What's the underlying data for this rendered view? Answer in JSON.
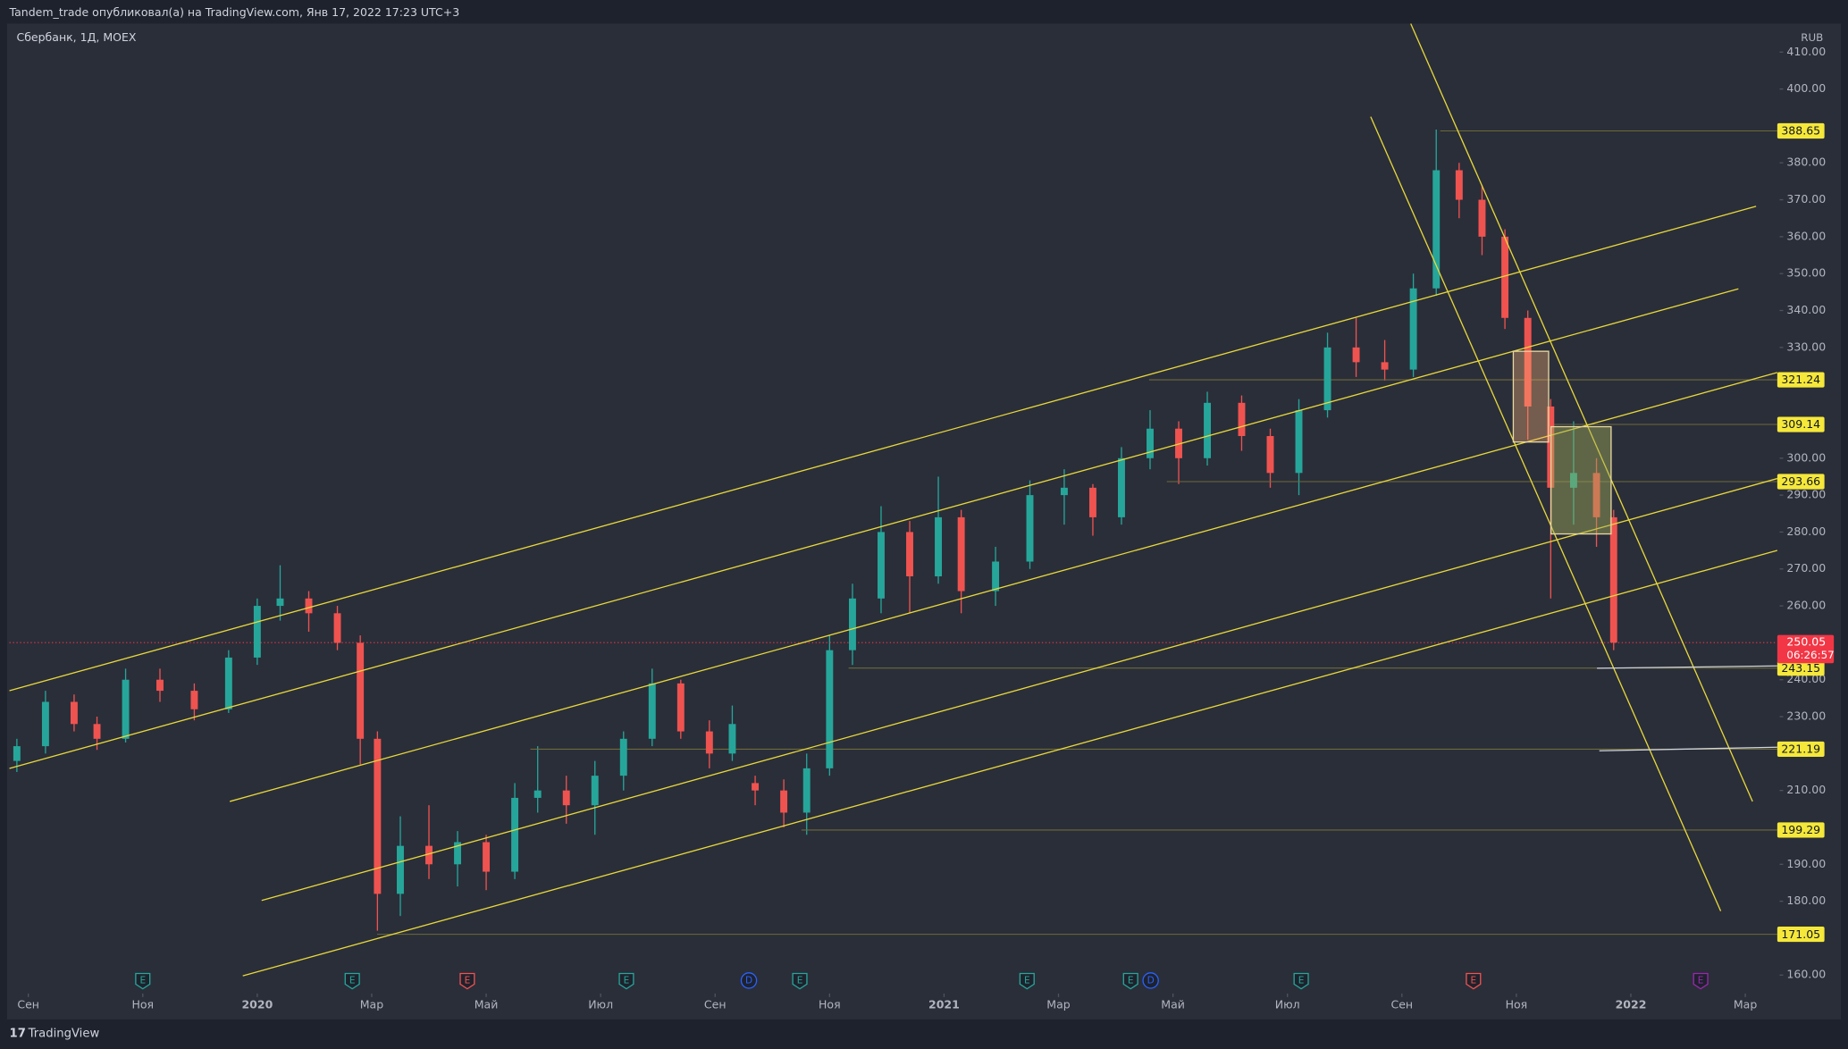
{
  "header": {
    "publisher": "Tandem_trade опубликовал(а) на TradingView.com, Янв 17, 2022 17:23 UTC+3"
  },
  "chart_data": {
    "type": "candlestick",
    "title": "Сбербанк, 1Д, MOEX",
    "currency": "RUB",
    "x": [
      -0.2,
      0.3,
      0.8,
      1.2,
      1.7,
      2.3,
      2.9,
      3.5,
      4.0,
      4.4,
      4.9,
      5.4,
      5.8,
      6.1,
      6.5,
      7.0,
      7.5,
      8.0,
      8.5,
      8.9,
      9.4,
      9.9,
      10.4,
      10.9,
      11.4,
      11.9,
      12.3,
      12.7,
      13.2,
      13.6,
      14.0,
      14.4,
      14.9,
      15.4,
      15.9,
      16.3,
      16.9,
      17.5,
      18.1,
      18.6,
      19.1,
      19.6,
      20.1,
      20.6,
      21.2,
      21.7,
      22.2,
      22.7,
      23.2,
      23.7,
      24.2,
      24.6,
      25.0,
      25.4,
      25.8,
      26.2,
      26.6,
      27.0,
      27.4,
      27.7
    ],
    "open": [
      218,
      222,
      234,
      228,
      224,
      240,
      237,
      232,
      246,
      260,
      262,
      258,
      250,
      224,
      182,
      195,
      190,
      196,
      188,
      208,
      210,
      206,
      214,
      224,
      239,
      226,
      220,
      212,
      210,
      204,
      216,
      248,
      262,
      280,
      268,
      284,
      264,
      272,
      290,
      292,
      284,
      300,
      308,
      300,
      315,
      306,
      296,
      313,
      330,
      326,
      324,
      346,
      378,
      370,
      360,
      338,
      314,
      292,
      296,
      284
    ],
    "high": [
      224,
      237,
      236,
      230,
      243,
      243,
      239,
      248,
      262,
      271,
      264,
      260,
      252,
      226,
      203,
      206,
      199,
      198,
      212,
      222,
      214,
      218,
      226,
      243,
      240,
      229,
      233,
      214,
      213,
      220,
      252,
      266,
      287,
      283,
      295,
      286,
      276,
      294,
      297,
      293,
      303,
      313,
      310,
      318,
      317,
      308,
      316,
      334,
      338,
      332,
      350,
      389,
      380,
      374,
      362,
      340,
      316,
      310,
      300,
      286
    ],
    "low": [
      215,
      220,
      226,
      221,
      223,
      234,
      229,
      231,
      244,
      256,
      253,
      248,
      217,
      172,
      176,
      186,
      184,
      183,
      186,
      204,
      201,
      198,
      210,
      222,
      224,
      216,
      218,
      206,
      200,
      198,
      214,
      244,
      258,
      258,
      266,
      258,
      260,
      270,
      282,
      279,
      282,
      297,
      293,
      298,
      302,
      292,
      290,
      311,
      322,
      321,
      322,
      344,
      365,
      355,
      335,
      305,
      262,
      282,
      276,
      248
    ],
    "close": [
      222,
      234,
      228,
      224,
      240,
      237,
      232,
      246,
      260,
      262,
      258,
      250,
      224,
      182,
      195,
      190,
      196,
      188,
      208,
      210,
      206,
      214,
      224,
      239,
      226,
      220,
      228,
      210,
      204,
      216,
      248,
      262,
      280,
      268,
      284,
      264,
      272,
      290,
      292,
      284,
      300,
      308,
      300,
      315,
      306,
      296,
      313,
      330,
      326,
      324,
      346,
      378,
      370,
      360,
      338,
      314,
      292,
      296,
      284,
      250.05
    ],
    "up_color": "#26a69a",
    "down_color": "#ef5350",
    "xlim": [
      -0.33,
      30.6
    ],
    "xticks": [
      {
        "value": 0,
        "label": "Сен"
      },
      {
        "value": 2,
        "label": "Ноя"
      },
      {
        "value": 4,
        "label": "2020"
      },
      {
        "value": 6,
        "label": "Мар"
      },
      {
        "value": 8,
        "label": "Май"
      },
      {
        "value": 10,
        "label": "Июл"
      },
      {
        "value": 12,
        "label": "Сен"
      },
      {
        "value": 14,
        "label": "Ноя"
      },
      {
        "value": 16,
        "label": "2021"
      },
      {
        "value": 18,
        "label": "Мар"
      },
      {
        "value": 20,
        "label": "Май"
      },
      {
        "value": 22,
        "label": "Июл"
      },
      {
        "value": 24,
        "label": "Сен"
      },
      {
        "value": 26,
        "label": "Ноя"
      },
      {
        "value": 28,
        "label": "2022"
      },
      {
        "value": 30,
        "label": "Мар"
      }
    ],
    "ylim": [
      155,
      417.7
    ],
    "yticks": [
      {
        "value": 410,
        "label": "410.00"
      },
      {
        "value": 400,
        "label": "400.00"
      },
      {
        "value": 380,
        "label": "380.00"
      },
      {
        "value": 370,
        "label": "370.00"
      },
      {
        "value": 360,
        "label": "360.00"
      },
      {
        "value": 350,
        "label": "350.00"
      },
      {
        "value": 340,
        "label": "340.00"
      },
      {
        "value": 330,
        "label": "330.00"
      },
      {
        "value": 300,
        "label": "300.00"
      },
      {
        "value": 290,
        "label": "290.00"
      },
      {
        "value": 280,
        "label": "280.00"
      },
      {
        "value": 270,
        "label": "270.00"
      },
      {
        "value": 260,
        "label": "260.00"
      },
      {
        "value": 240,
        "label": "240.00"
      },
      {
        "value": 230,
        "label": "230.00"
      },
      {
        "value": 210,
        "label": "210.00"
      },
      {
        "value": 190,
        "label": "190.00"
      },
      {
        "value": 180,
        "label": "180.00"
      },
      {
        "value": 160,
        "label": "160.00"
      }
    ],
    "levels": [
      388.65,
      321.24,
      309.14,
      293.66,
      243.15,
      221.19,
      199.29,
      171.05
    ],
    "level_color": "#f5e83a",
    "last_price": 250.05,
    "countdown": "06:26:57",
    "last_color": "#f23645",
    "events": [
      {
        "x": 2.0,
        "label": "E",
        "color": "#26a69a"
      },
      {
        "x": 5.66,
        "label": "E",
        "color": "#26a69a"
      },
      {
        "x": 7.67,
        "label": "E",
        "color": "#ef5350"
      },
      {
        "x": 10.45,
        "label": "E",
        "color": "#26a69a"
      },
      {
        "x": 12.59,
        "label": "D",
        "color": "#2962ff"
      },
      {
        "x": 13.48,
        "label": "E",
        "color": "#26a69a"
      },
      {
        "x": 17.45,
        "label": "E",
        "color": "#26a69a"
      },
      {
        "x": 19.26,
        "label": "E",
        "color": "#26a69a"
      },
      {
        "x": 19.61,
        "label": "D",
        "color": "#2962ff"
      },
      {
        "x": 22.24,
        "label": "E",
        "color": "#26a69a"
      },
      {
        "x": 25.25,
        "label": "E",
        "color": "#ef5350"
      },
      {
        "x": 29.22,
        "label": "E",
        "color": "#9c27b0"
      }
    ]
  },
  "footer": {
    "brand": "TradingView"
  }
}
